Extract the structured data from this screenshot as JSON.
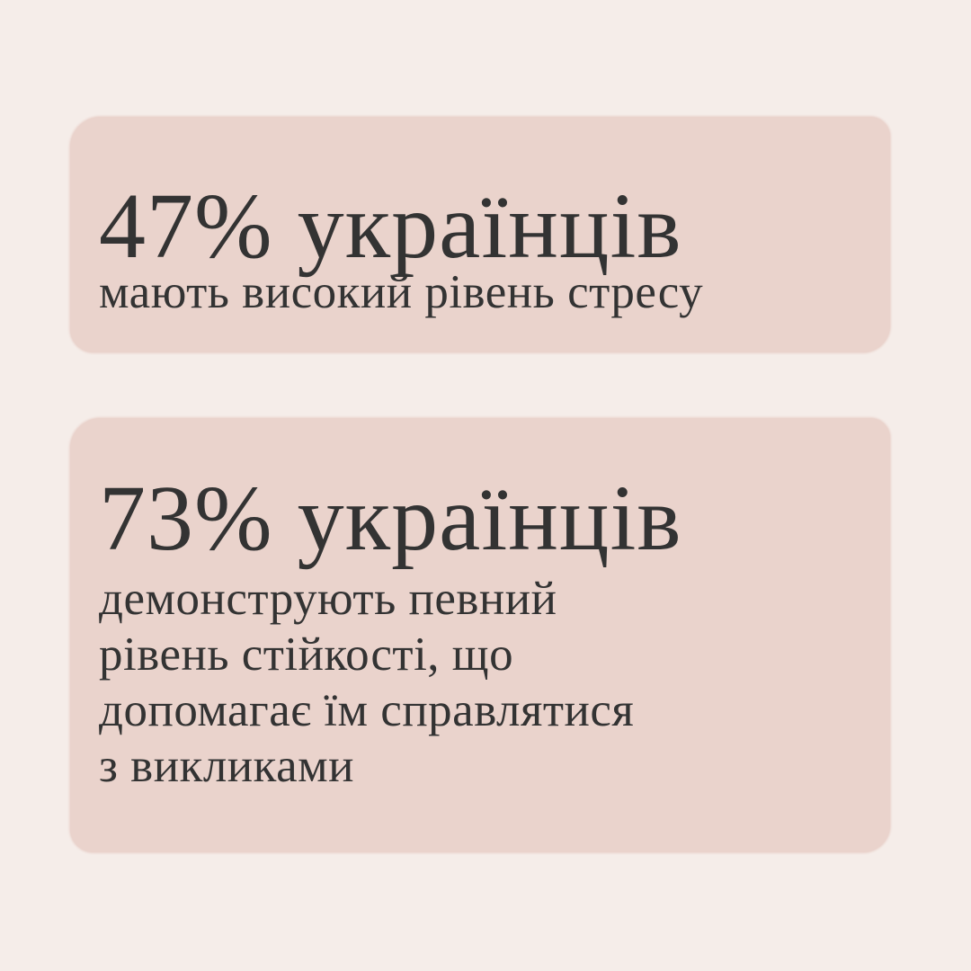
{
  "colors": {
    "background": "#f5ede9",
    "card": "#ead3cc",
    "text": "#333333"
  },
  "stats": [
    {
      "headline": "47% українців",
      "lines": [
        "мають високий рівень стресу"
      ]
    },
    {
      "headline": "73% українців",
      "lines": [
        "демонструють певний",
        "рівень стійкості, що",
        "допомагає їм справлятися",
        "з викликами"
      ]
    }
  ]
}
